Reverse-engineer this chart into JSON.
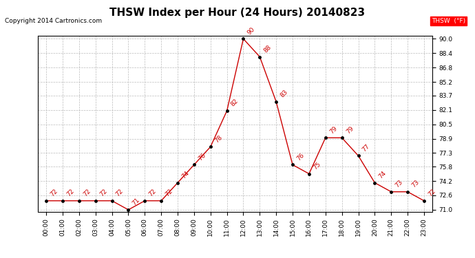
{
  "title": "THSW Index per Hour (24 Hours) 20140823",
  "copyright": "Copyright 2014 Cartronics.com",
  "legend_label": "THSW  (°F)",
  "hours": [
    "00:00",
    "01:00",
    "02:00",
    "03:00",
    "04:00",
    "05:00",
    "06:00",
    "07:00",
    "08:00",
    "09:00",
    "10:00",
    "11:00",
    "12:00",
    "13:00",
    "14:00",
    "15:00",
    "16:00",
    "17:00",
    "18:00",
    "19:00",
    "20:00",
    "21:00",
    "22:00",
    "23:00"
  ],
  "values": [
    72,
    72,
    72,
    72,
    72,
    71,
    72,
    72,
    74,
    76,
    78,
    82,
    90,
    88,
    83,
    76,
    75,
    79,
    79,
    77,
    74,
    73,
    73,
    72
  ],
  "line_color": "#cc0000",
  "marker_color": "#000000",
  "grid_color": "#bbbbbb",
  "background_color": "#ffffff",
  "ylim_min": 71.0,
  "ylim_max": 90.0,
  "yticks": [
    71.0,
    72.6,
    74.2,
    75.8,
    77.3,
    78.9,
    80.5,
    82.1,
    83.7,
    85.2,
    86.8,
    88.4,
    90.0
  ],
  "title_fontsize": 11,
  "label_fontsize": 6.5,
  "annotation_fontsize": 6.5,
  "copyright_fontsize": 6.5
}
